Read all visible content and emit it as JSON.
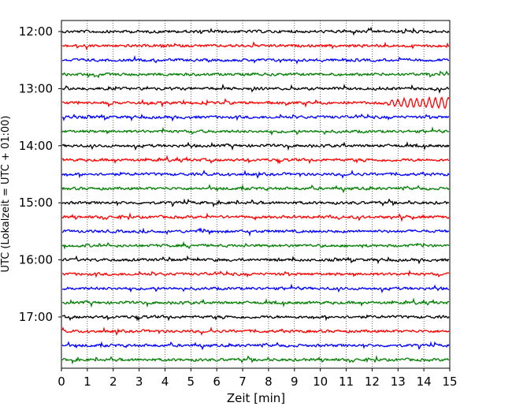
{
  "chart_data": {
    "type": "line",
    "subtype": "helicorder",
    "xlabel": "Zeit  [min]",
    "ylabel": "UTC (Lokalzeit = UTC + 01:00)",
    "xlim": [
      0,
      15
    ],
    "x_ticks": [
      0,
      1,
      2,
      3,
      4,
      5,
      6,
      7,
      8,
      9,
      10,
      11,
      12,
      13,
      14,
      15
    ],
    "y_tick_labels": [
      "12:00",
      "13:00",
      "14:00",
      "15:00",
      "16:00",
      "17:00"
    ],
    "rows_per_hour": 4,
    "row_minutes": 15,
    "grid": "vertical dotted at each minute",
    "row_colors": [
      "#000000",
      "#ff0000",
      "#0000ff",
      "#008000"
    ],
    "trace_rows": [
      {
        "start": "12:00",
        "color": "#000000"
      },
      {
        "start": "12:15",
        "color": "#ff0000"
      },
      {
        "start": "12:30",
        "color": "#0000ff"
      },
      {
        "start": "12:45",
        "color": "#008000"
      },
      {
        "start": "13:00",
        "color": "#000000"
      },
      {
        "start": "13:15",
        "color": "#ff0000",
        "note": "oscillation building from ~12.5 min"
      },
      {
        "start": "13:30",
        "color": "#0000ff"
      },
      {
        "start": "13:45",
        "color": "#008000"
      },
      {
        "start": "14:00",
        "color": "#000000"
      },
      {
        "start": "14:15",
        "color": "#ff0000"
      },
      {
        "start": "14:30",
        "color": "#0000ff"
      },
      {
        "start": "14:45",
        "color": "#008000"
      },
      {
        "start": "15:00",
        "color": "#000000"
      },
      {
        "start": "15:15",
        "color": "#ff0000"
      },
      {
        "start": "15:30",
        "color": "#0000ff"
      },
      {
        "start": "15:45",
        "color": "#008000"
      },
      {
        "start": "16:00",
        "color": "#000000"
      },
      {
        "start": "16:15",
        "color": "#ff0000"
      },
      {
        "start": "16:30",
        "color": "#0000ff"
      },
      {
        "start": "16:45",
        "color": "#008000"
      },
      {
        "start": "17:00",
        "color": "#000000"
      },
      {
        "start": "17:15",
        "color": "#ff0000"
      },
      {
        "start": "17:30",
        "color": "#0000ff"
      },
      {
        "start": "17:45",
        "color": "#008000"
      }
    ]
  }
}
